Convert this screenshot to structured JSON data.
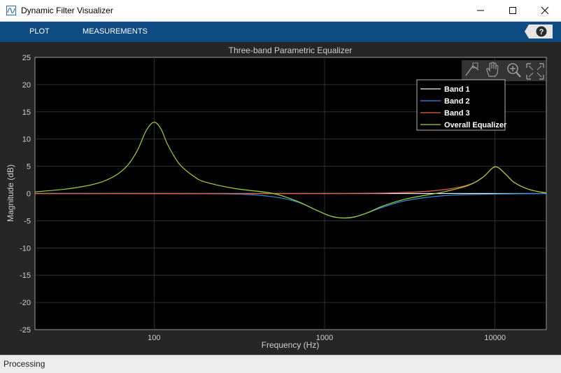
{
  "window": {
    "title": "Dynamic Filter Visualizer"
  },
  "toolstrip": {
    "tabs": [
      {
        "label": "PLOT"
      },
      {
        "label": "MEASUREMENTS"
      }
    ],
    "help_icon": "question-icon"
  },
  "status": {
    "text": "Processing"
  },
  "colors": {
    "toolstrip": "#0d4b82",
    "background": "#262626",
    "axes_bg": "#000000",
    "band1": "#f2f2f2",
    "band2": "#2f8ee0",
    "band3": "#e8604a",
    "overall": "#9fd43a"
  },
  "chart_data": {
    "type": "line",
    "title": "Three-band Parametric Equalizer",
    "xlabel": "Frequency (Hz)",
    "ylabel": "Magnitude (dB)",
    "xscale": "log",
    "xlim": [
      20,
      20000
    ],
    "ylim": [
      -25,
      25
    ],
    "x_ticks": [
      {
        "value": 100,
        "label": "100"
      },
      {
        "value": 1000,
        "label": "1000"
      },
      {
        "value": 10000,
        "label": "10000"
      }
    ],
    "y_ticks": [
      25,
      20,
      15,
      10,
      5,
      0,
      -5,
      -10,
      -15,
      -20,
      -25
    ],
    "grid": true,
    "legend_position": "top-right",
    "series": [
      {
        "name": "Band 1",
        "color": "#f2f2f2",
        "x": [
          20,
          30,
          50,
          70,
          90,
          100,
          120,
          150,
          200,
          300,
          500,
          1000,
          2000,
          5000,
          10000,
          20000
        ],
        "y": [
          0.0,
          0.0,
          0.0,
          0.0,
          0.0,
          0.0,
          0.0,
          0.0,
          0.0,
          0.0,
          0.0,
          0.0,
          0.0,
          0.0,
          0.0,
          0.0
        ]
      },
      {
        "name": "Band 2",
        "color": "#2f8ee0",
        "x": [
          20,
          100,
          300,
          500,
          700,
          900,
          1100,
          1300,
          1500,
          1800,
          2200,
          3000,
          5000,
          10000,
          20000
        ],
        "y": [
          0.0,
          0.0,
          -0.1,
          -0.6,
          -1.6,
          -3.1,
          -4.2,
          -4.5,
          -4.3,
          -3.5,
          -2.5,
          -1.3,
          -0.4,
          -0.1,
          0.0
        ]
      },
      {
        "name": "Band 3",
        "color": "#e8604a",
        "x": [
          20,
          1000,
          3000,
          5000,
          7000,
          8500,
          10000,
          11500,
          13000,
          16000,
          20000
        ],
        "y": [
          0.0,
          0.0,
          0.2,
          0.7,
          1.6,
          3.0,
          4.9,
          3.6,
          2.0,
          0.7,
          0.1
        ]
      },
      {
        "name": "Overall Equalizer",
        "color": "#9fd43a",
        "x": [
          20,
          30,
          40,
          50,
          60,
          70,
          80,
          90,
          100,
          110,
          120,
          140,
          170,
          200,
          300,
          500,
          700,
          900,
          1100,
          1300,
          1500,
          1800,
          2200,
          3000,
          5000,
          7000,
          8500,
          10000,
          11500,
          13000,
          16000,
          20000
        ],
        "y": [
          0.3,
          0.8,
          1.4,
          2.2,
          3.4,
          5.2,
          8.0,
          11.6,
          13.1,
          11.8,
          9.0,
          5.5,
          3.2,
          2.1,
          0.9,
          0.0,
          -1.5,
          -3.1,
          -4.2,
          -4.5,
          -4.3,
          -3.5,
          -2.3,
          -1.0,
          0.3,
          1.5,
          3.0,
          4.9,
          3.6,
          2.0,
          0.7,
          0.1
        ]
      }
    ]
  }
}
